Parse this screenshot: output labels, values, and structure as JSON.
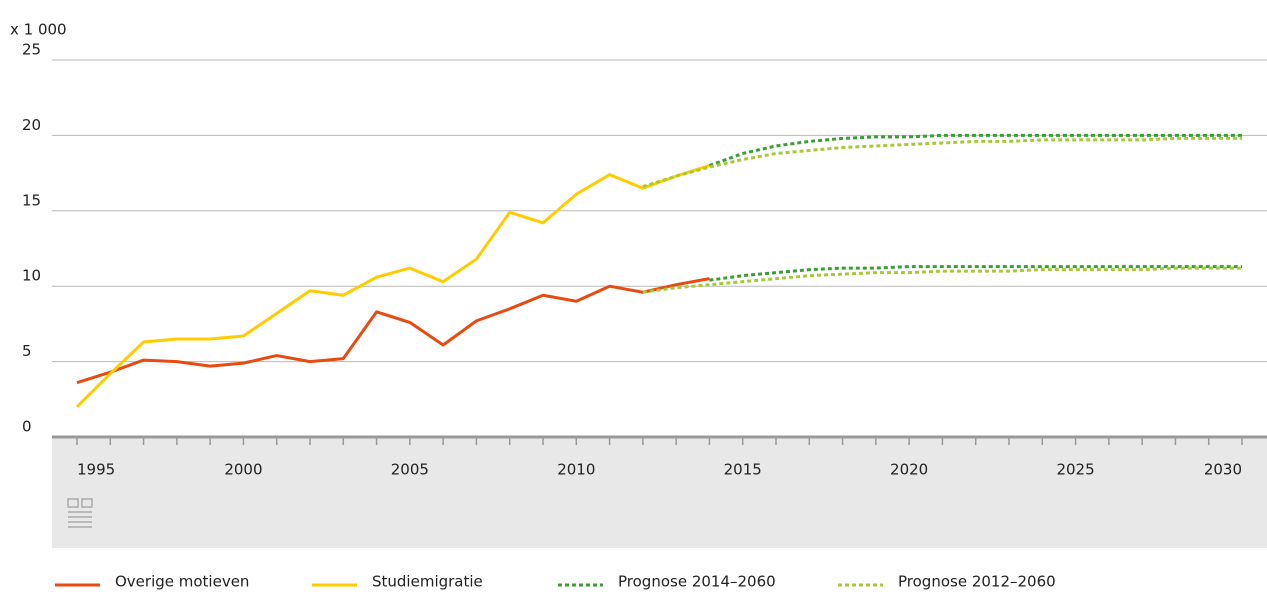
{
  "chart_data": {
    "type": "line",
    "unit_label": "x 1 000",
    "x": [
      1995,
      1996,
      1997,
      1998,
      1999,
      2000,
      2001,
      2002,
      2003,
      2004,
      2005,
      2006,
      2007,
      2008,
      2009,
      2010,
      2011,
      2012,
      2013,
      2014,
      2015,
      2016,
      2017,
      2018,
      2019,
      2020,
      2021,
      2022,
      2023,
      2024,
      2025,
      2026,
      2027,
      2028,
      2029,
      2030
    ],
    "xlim": [
      1995,
      2030
    ],
    "xticks": [
      1995,
      2000,
      2005,
      2010,
      2015,
      2020,
      2025,
      2030
    ],
    "ylim": [
      0,
      25
    ],
    "yticks": [
      0,
      5,
      10,
      15,
      20,
      25
    ],
    "grid": true,
    "legend": "bottom",
    "series": [
      {
        "name": "Overige motieven",
        "color": "#e64b12",
        "style": "solid",
        "lines": [
          {
            "values": [
              3.6,
              4.3,
              5.1,
              5.0,
              4.7,
              4.9,
              5.4,
              5.0,
              5.2,
              8.3,
              7.6,
              6.1,
              7.7,
              8.5,
              9.4,
              9.0,
              10.0,
              9.6,
              10.1,
              10.5,
              null,
              null,
              null,
              null,
              null,
              null,
              null,
              null,
              null,
              null,
              null,
              null,
              null,
              null,
              null,
              null
            ]
          }
        ]
      },
      {
        "name": "Studiemigratie",
        "color": "#ffcc00",
        "style": "solid",
        "lines": [
          {
            "values": [
              2.0,
              4.2,
              6.3,
              6.5,
              6.5,
              6.7,
              8.2,
              9.7,
              9.4,
              10.6,
              11.2,
              10.3,
              11.8,
              14.9,
              14.2,
              16.1,
              17.4,
              16.5,
              17.3,
              18.0,
              null,
              null,
              null,
              null,
              null,
              null,
              null,
              null,
              null,
              null,
              null,
              null,
              null,
              null,
              null,
              null
            ]
          }
        ]
      },
      {
        "name": "Prognose 2014–2060",
        "color": "#3a9e35",
        "style": "dotted",
        "lines": [
          {
            "values": [
              null,
              null,
              null,
              null,
              null,
              null,
              null,
              null,
              null,
              null,
              null,
              null,
              null,
              null,
              null,
              null,
              null,
              null,
              null,
              18.0,
              18.8,
              19.3,
              19.6,
              19.8,
              19.9,
              19.9,
              20.0,
              20.0,
              20.0,
              20.0,
              20.0,
              20.0,
              20.0,
              20.0,
              20.0,
              20.0
            ]
          },
          {
            "values": [
              null,
              null,
              null,
              null,
              null,
              null,
              null,
              null,
              null,
              null,
              null,
              null,
              null,
              null,
              null,
              null,
              null,
              null,
              null,
              10.4,
              10.7,
              10.9,
              11.1,
              11.2,
              11.2,
              11.3,
              11.3,
              11.3,
              11.3,
              11.3,
              11.3,
              11.3,
              11.3,
              11.3,
              11.3,
              11.3
            ]
          }
        ]
      },
      {
        "name": "Prognose 2012–2060",
        "color": "#a8c837",
        "style": "dotted",
        "lines": [
          {
            "values": [
              null,
              null,
              null,
              null,
              null,
              null,
              null,
              null,
              null,
              null,
              null,
              null,
              null,
              null,
              null,
              null,
              null,
              16.6,
              17.3,
              17.9,
              18.4,
              18.8,
              19.0,
              19.2,
              19.3,
              19.4,
              19.5,
              19.6,
              19.6,
              19.7,
              19.7,
              19.7,
              19.7,
              19.8,
              19.8,
              19.8
            ]
          },
          {
            "values": [
              null,
              null,
              null,
              null,
              null,
              null,
              null,
              null,
              null,
              null,
              null,
              null,
              null,
              null,
              null,
              null,
              null,
              9.6,
              9.9,
              10.1,
              10.3,
              10.5,
              10.7,
              10.8,
              10.9,
              10.9,
              11.0,
              11.0,
              11.0,
              11.1,
              11.1,
              11.1,
              11.1,
              11.2,
              11.2,
              11.2
            ]
          }
        ]
      }
    ]
  }
}
